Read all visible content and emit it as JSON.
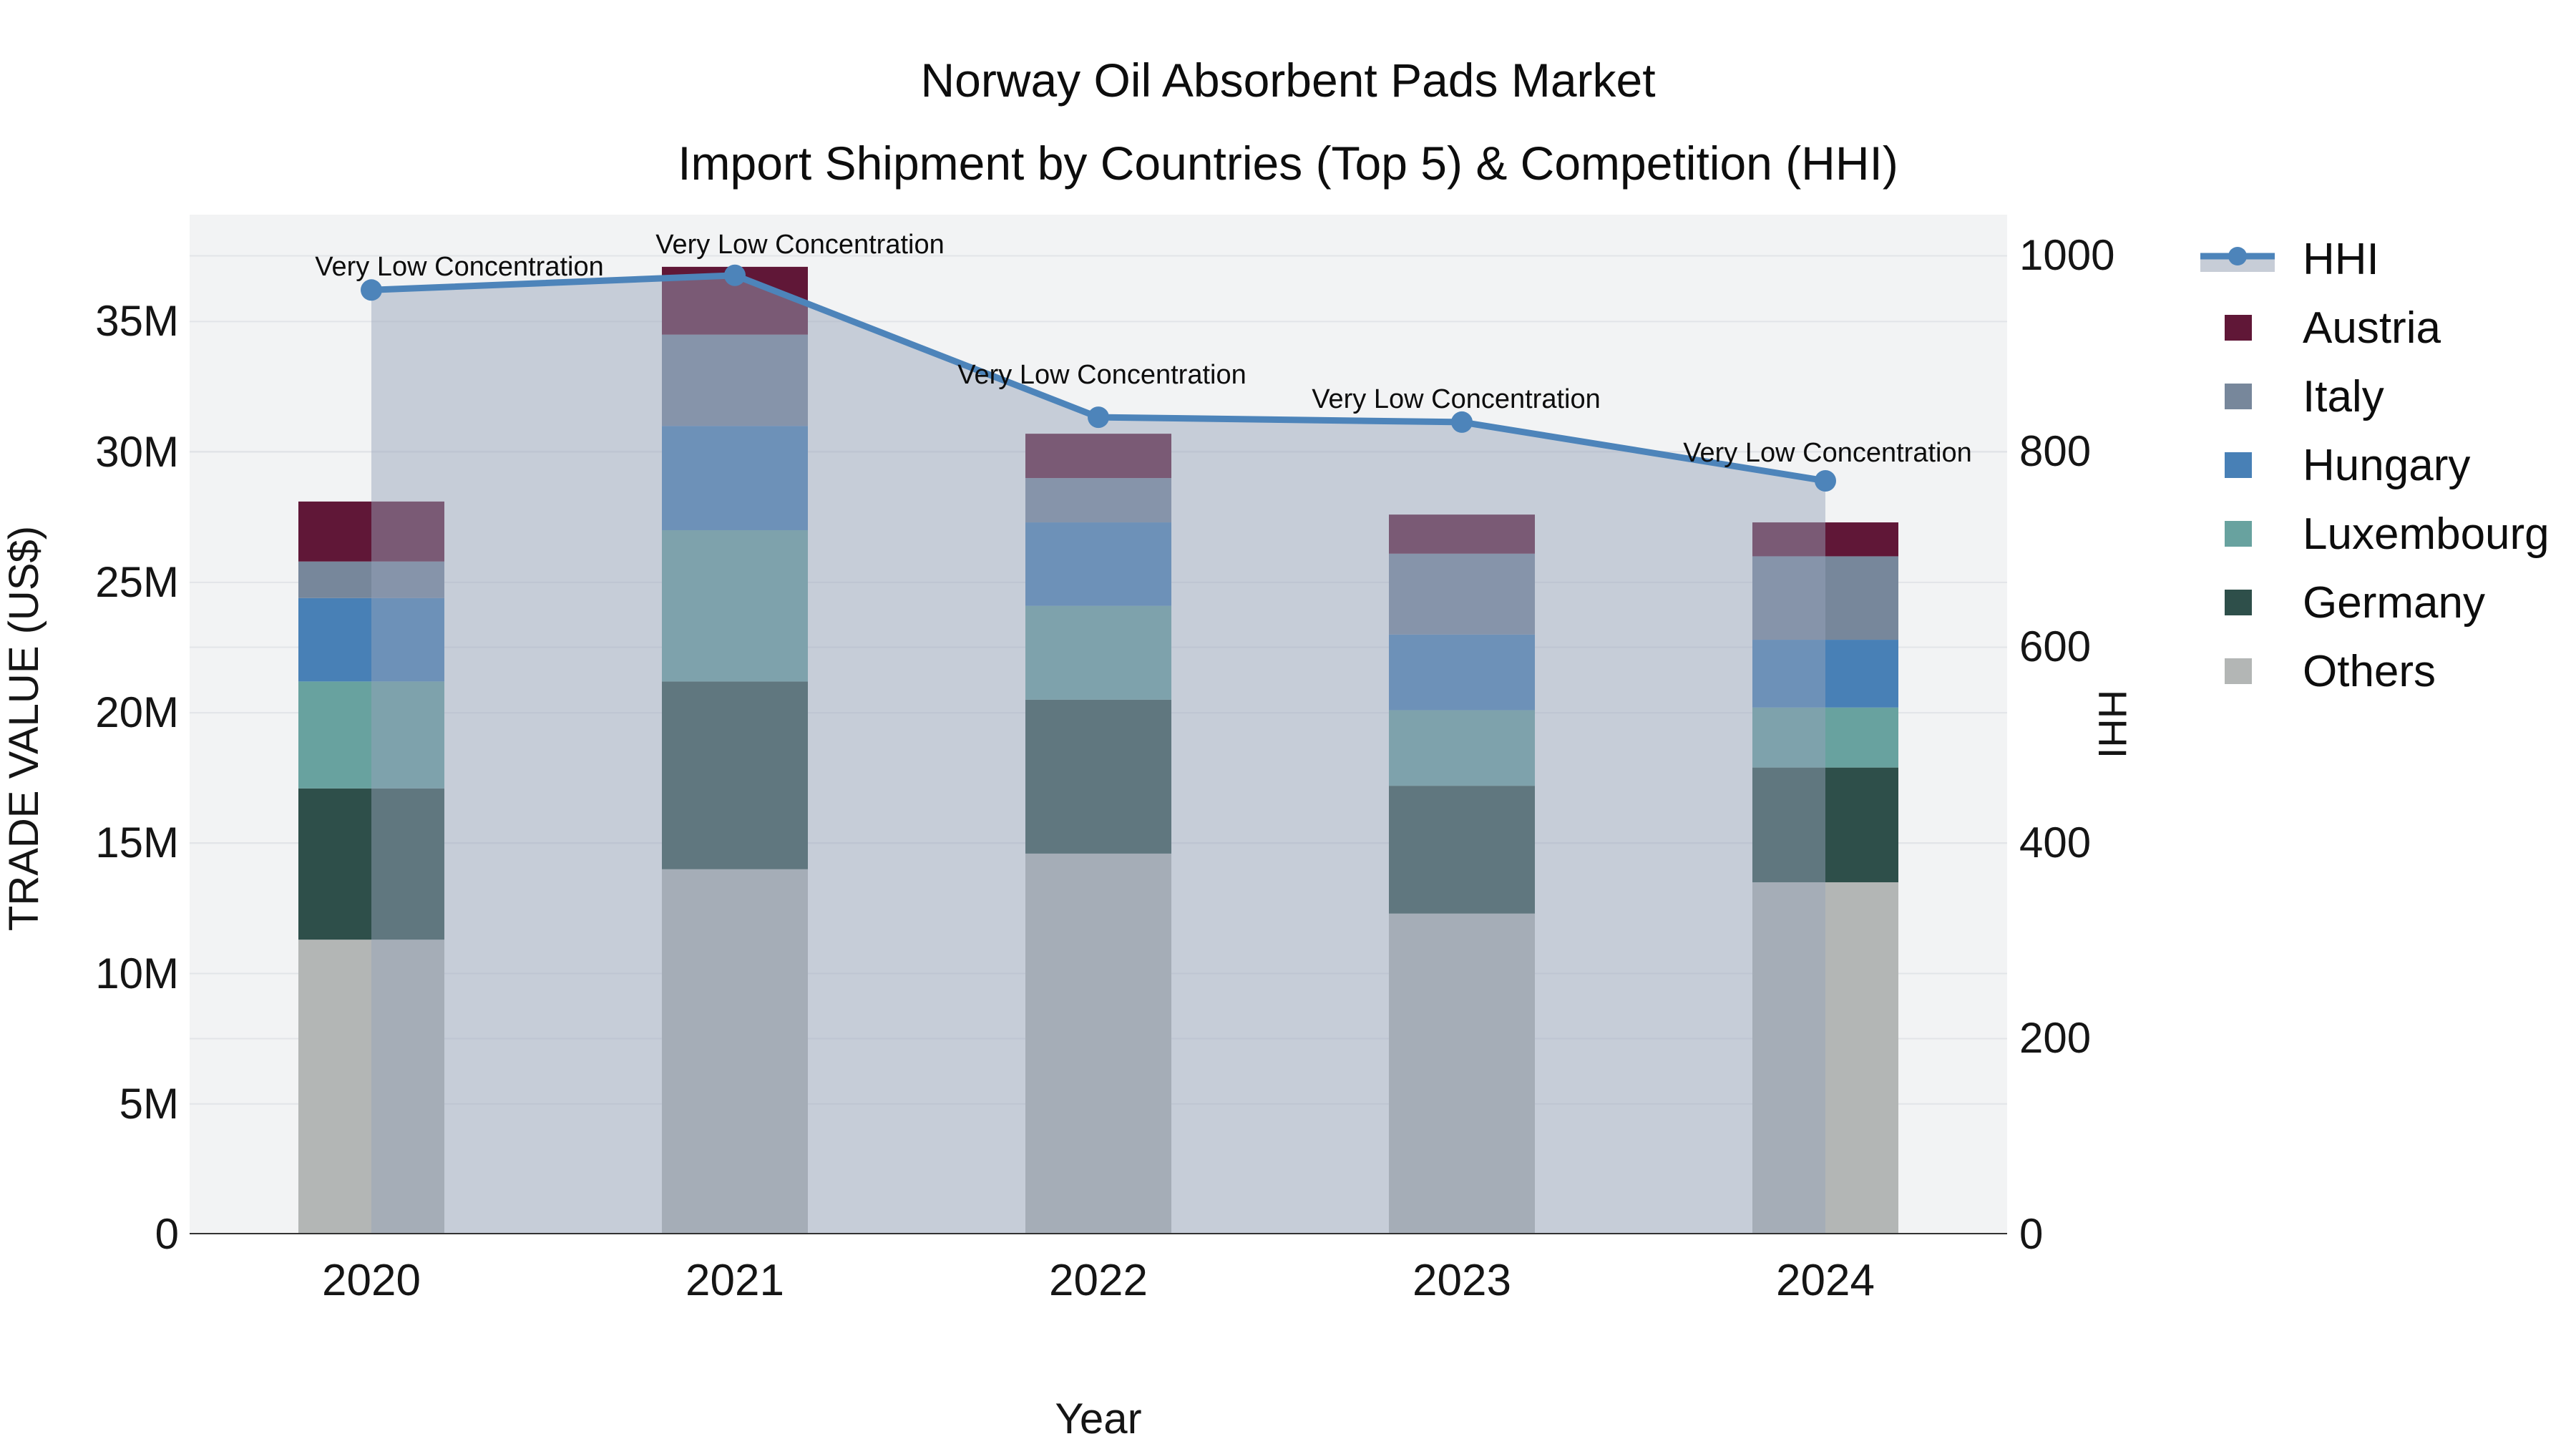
{
  "title": {
    "line1": "Norway Oil Absorbent Pads Market",
    "line2": "Import Shipment by Countries (Top 5) & Competition (HHI)"
  },
  "axes": {
    "y_left": {
      "title": "TRADE VALUE (US$)",
      "tick_labels": [
        "0",
        "5M",
        "10M",
        "15M",
        "20M",
        "25M",
        "30M",
        "35M"
      ],
      "tick_values": [
        0,
        5,
        10,
        15,
        20,
        25,
        30,
        35
      ]
    },
    "y_right": {
      "title": "HHI",
      "tick_labels": [
        "0",
        "200",
        "400",
        "600",
        "800",
        "1000"
      ],
      "tick_values": [
        0,
        200,
        400,
        600,
        800,
        1000
      ]
    },
    "x": {
      "title": "Year",
      "categories": [
        "2020",
        "2021",
        "2022",
        "2023",
        "2024"
      ]
    }
  },
  "legend": {
    "position": "right",
    "items": [
      {
        "label": "HHI",
        "type": "line",
        "color": "#4d84ba"
      },
      {
        "label": "Austria",
        "type": "swatch",
        "color": "#601737"
      },
      {
        "label": "Italy",
        "type": "swatch",
        "color": "#77879b"
      },
      {
        "label": "Hungary",
        "type": "swatch",
        "color": "#4880b6"
      },
      {
        "label": "Luxembourg",
        "type": "swatch",
        "color": "#68a29f"
      },
      {
        "label": "Germany",
        "type": "swatch",
        "color": "#2e4f4a"
      },
      {
        "label": "Others",
        "type": "swatch",
        "color": "#b3b6b5"
      }
    ]
  },
  "colors": {
    "plot_background": "#f2f3f4",
    "gridline": "#e2e4e8",
    "axis_line": "#323232",
    "hhi_line": "#4d84ba",
    "hhi_area_fill": "rgba(150,163,185,0.48)",
    "legend_band": "#c7cdd7"
  },
  "chart_data": {
    "type": [
      "bar",
      "line"
    ],
    "title": "Norway Oil Absorbent Pads Market — Import Shipment by Countries (Top 5) & Competition (HHI)",
    "categories": [
      "2020",
      "2021",
      "2022",
      "2023",
      "2024"
    ],
    "bar_value_unit": "million US$",
    "stack_order_bottom_to_top": [
      "Others",
      "Germany",
      "Luxembourg",
      "Hungary",
      "Italy",
      "Austria"
    ],
    "series": [
      {
        "name": "Austria",
        "color": "#601737",
        "values": [
          2.3,
          2.6,
          1.7,
          1.5,
          1.3
        ]
      },
      {
        "name": "Italy",
        "color": "#77879b",
        "values": [
          1.4,
          3.5,
          1.7,
          3.1,
          3.2
        ]
      },
      {
        "name": "Hungary",
        "color": "#4880b6",
        "values": [
          3.2,
          4.0,
          3.2,
          2.9,
          2.6
        ]
      },
      {
        "name": "Luxembourg",
        "color": "#68a29f",
        "values": [
          4.1,
          5.8,
          3.6,
          2.9,
          2.3
        ]
      },
      {
        "name": "Germany",
        "color": "#2e4f4a",
        "values": [
          5.8,
          7.2,
          5.9,
          4.9,
          4.4
        ]
      },
      {
        "name": "Others",
        "color": "#b3b6b5",
        "values": [
          11.3,
          14.0,
          14.6,
          12.3,
          13.5
        ]
      }
    ],
    "bar_totals": [
      28.1,
      37.1,
      30.7,
      27.6,
      27.3
    ],
    "hhi": {
      "name": "HHI",
      "color": "#4d84ba",
      "values": [
        965,
        980,
        835,
        830,
        770
      ],
      "area_fill": "rgba(150,163,185,0.48)"
    },
    "annotations": [
      "Very Low Concentration",
      "Very Low Concentration",
      "Very Low Concentration",
      "Very Low Concentration",
      "Very Low Concentration"
    ],
    "xlabel": "Year",
    "ylabel_left": "TRADE VALUE (US$)",
    "ylabel_right": "HHI",
    "ylim_left": [
      0,
      39.1
    ],
    "ylim_right": [
      0,
      1042
    ],
    "grid": true,
    "legend_position": "right"
  }
}
